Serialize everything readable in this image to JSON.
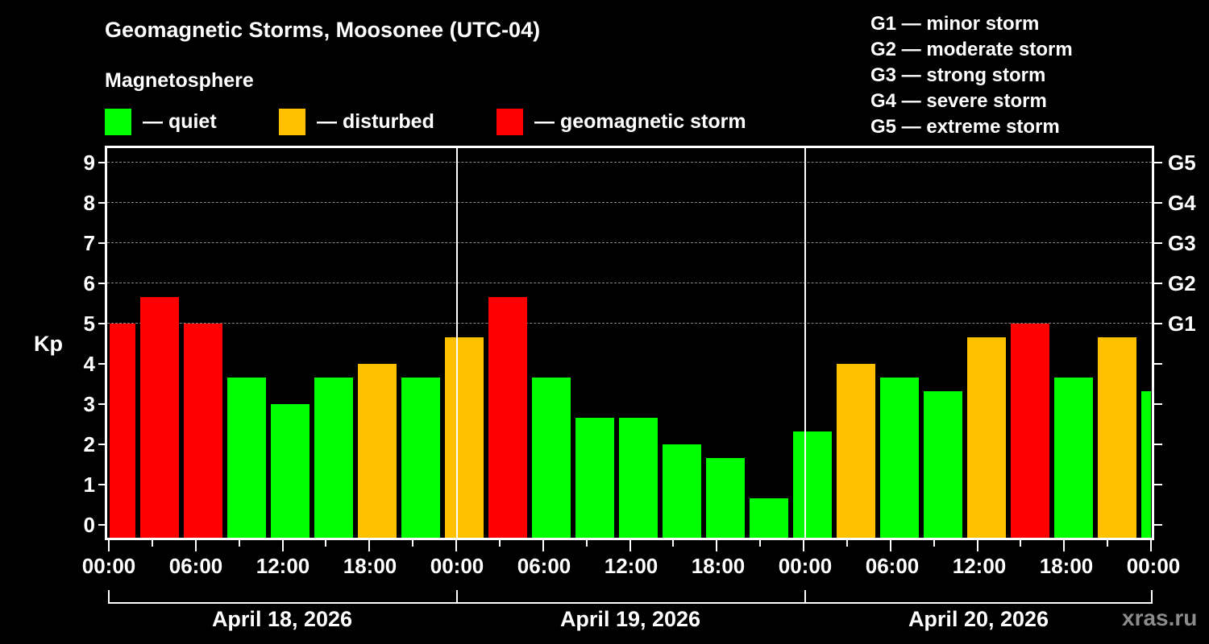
{
  "header": {
    "title": "Geomagnetic Storms, Moosonee (UTC-04)",
    "subtitle": "Magnetosphere"
  },
  "legend": [
    {
      "label": "— quiet",
      "color": "#00ff00"
    },
    {
      "label": "— disturbed",
      "color": "#ffc000"
    },
    {
      "label": "— geomagnetic storm",
      "color": "#ff0000"
    }
  ],
  "g_scale": [
    "G1 — minor storm",
    "G2 — moderate storm",
    "G3 — strong storm",
    "G4 — severe storm",
    "G5 — extreme storm"
  ],
  "axes": {
    "y_label": "Kp",
    "y_ticks": [
      "0",
      "1",
      "2",
      "3",
      "4",
      "5",
      "6",
      "7",
      "8",
      "9"
    ],
    "g_ticks": [
      "G1",
      "G2",
      "G3",
      "G4",
      "G5"
    ],
    "x_ticks": [
      "00:00",
      "06:00",
      "12:00",
      "18:00",
      "00:00",
      "06:00",
      "12:00",
      "18:00",
      "00:00",
      "06:00",
      "12:00",
      "18:00",
      "00:00"
    ],
    "dates": [
      "April 18, 2026",
      "April 19, 2026",
      "April 20, 2026"
    ]
  },
  "watermark": "xras.ru",
  "colors": {
    "quiet": "#00ff00",
    "disturbed": "#ffc000",
    "storm": "#ff0000",
    "background": "#000000",
    "grid": "#8a8a8a"
  },
  "chart_data": {
    "type": "bar",
    "title": "Geomagnetic Storms, Moosonee (UTC-04)",
    "xlabel": "",
    "ylabel": "Kp",
    "ylim": [
      0,
      9
    ],
    "grid": "horizontal dashed at Kp 5-9",
    "legend_position": "top",
    "interval_hours": 3,
    "categories": [
      "Apr 18 00:00",
      "Apr 18 03:00",
      "Apr 18 06:00",
      "Apr 18 09:00",
      "Apr 18 12:00",
      "Apr 18 15:00",
      "Apr 18 18:00",
      "Apr 18 21:00",
      "Apr 19 00:00",
      "Apr 19 03:00",
      "Apr 19 06:00",
      "Apr 19 09:00",
      "Apr 19 12:00",
      "Apr 19 15:00",
      "Apr 19 18:00",
      "Apr 19 21:00",
      "Apr 20 00:00",
      "Apr 20 03:00",
      "Apr 20 06:00",
      "Apr 20 09:00",
      "Apr 20 12:00",
      "Apr 20 15:00",
      "Apr 20 18:00",
      "Apr 20 21:00",
      "Apr 21 00:00"
    ],
    "values": [
      5.0,
      5.67,
      5.0,
      3.67,
      3.0,
      3.67,
      4.0,
      3.67,
      4.67,
      5.67,
      3.67,
      2.67,
      2.67,
      2.0,
      1.67,
      0.67,
      2.33,
      4.0,
      3.67,
      3.33,
      4.67,
      5.0,
      3.67,
      4.67,
      3.33
    ],
    "levels": [
      "storm",
      "storm",
      "storm",
      "quiet",
      "quiet",
      "quiet",
      "disturbed",
      "quiet",
      "disturbed",
      "storm",
      "quiet",
      "quiet",
      "quiet",
      "quiet",
      "quiet",
      "quiet",
      "quiet",
      "disturbed",
      "quiet",
      "quiet",
      "disturbed",
      "storm",
      "quiet",
      "disturbed",
      "quiet"
    ],
    "g_levels": {
      "G1": 5,
      "G2": 6,
      "G3": 7,
      "G4": 8,
      "G5": 9
    }
  }
}
